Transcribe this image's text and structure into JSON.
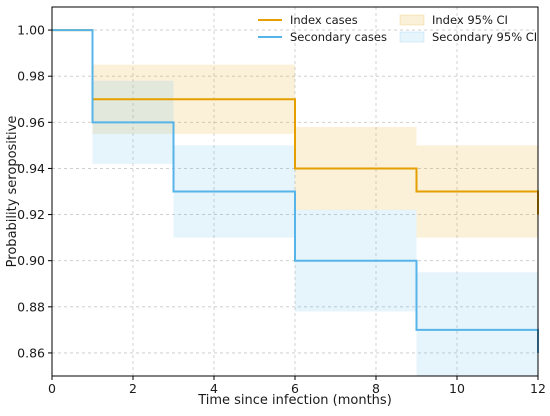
{
  "chart_data": {
    "type": "line",
    "subtype": "step",
    "title": "",
    "xlabel": "Time since infection (months)",
    "ylabel": "Probability seropositive",
    "xlim": [
      0,
      12
    ],
    "ylim": [
      0.85,
      1.01
    ],
    "xticks": [
      0,
      2,
      4,
      6,
      8,
      10,
      12
    ],
    "yticks": [
      0.86,
      0.88,
      0.9,
      0.92,
      0.94,
      0.96,
      0.98,
      1.0
    ],
    "xtick_labels": [
      "0",
      "2",
      "4",
      "6",
      "8",
      "10",
      "12"
    ],
    "ytick_labels": [
      "0.86",
      "0.88",
      "0.90",
      "0.92",
      "0.94",
      "0.96",
      "0.98",
      "1.00"
    ],
    "grid": true,
    "legend": {
      "placement": "top-right",
      "columns": 2,
      "entries": [
        "Index cases",
        "Index 95% CI",
        "Secondary cases",
        "Secondary 95% CI"
      ]
    },
    "series": [
      {
        "name": "Index cases",
        "color": "#E69F00",
        "x": [
          0,
          1,
          6,
          9,
          12
        ],
        "y": [
          1.0,
          0.97,
          0.94,
          0.93,
          0.92
        ]
      },
      {
        "name": "Secondary cases",
        "color": "#56B4E9",
        "x": [
          0,
          1,
          3,
          6,
          9,
          12
        ],
        "y": [
          1.0,
          0.96,
          0.93,
          0.9,
          0.87,
          0.86
        ]
      }
    ],
    "confidence_bands": [
      {
        "name": "Index 95% CI",
        "color": "#E69F00",
        "intervals": [
          {
            "x": [
              1,
              6
            ],
            "low": 0.955,
            "high": 0.985
          },
          {
            "x": [
              6,
              9
            ],
            "low": 0.922,
            "high": 0.958
          },
          {
            "x": [
              9,
              12
            ],
            "low": 0.91,
            "high": 0.95
          }
        ]
      },
      {
        "name": "Secondary 95% CI",
        "color": "#56B4E9",
        "intervals": [
          {
            "x": [
              1,
              3
            ],
            "low": 0.942,
            "high": 0.978
          },
          {
            "x": [
              3,
              6
            ],
            "low": 0.91,
            "high": 0.95
          },
          {
            "x": [
              6,
              9
            ],
            "low": 0.878,
            "high": 0.922
          },
          {
            "x": [
              9,
              12
            ],
            "low": 0.85,
            "high": 0.895
          }
        ]
      }
    ]
  }
}
